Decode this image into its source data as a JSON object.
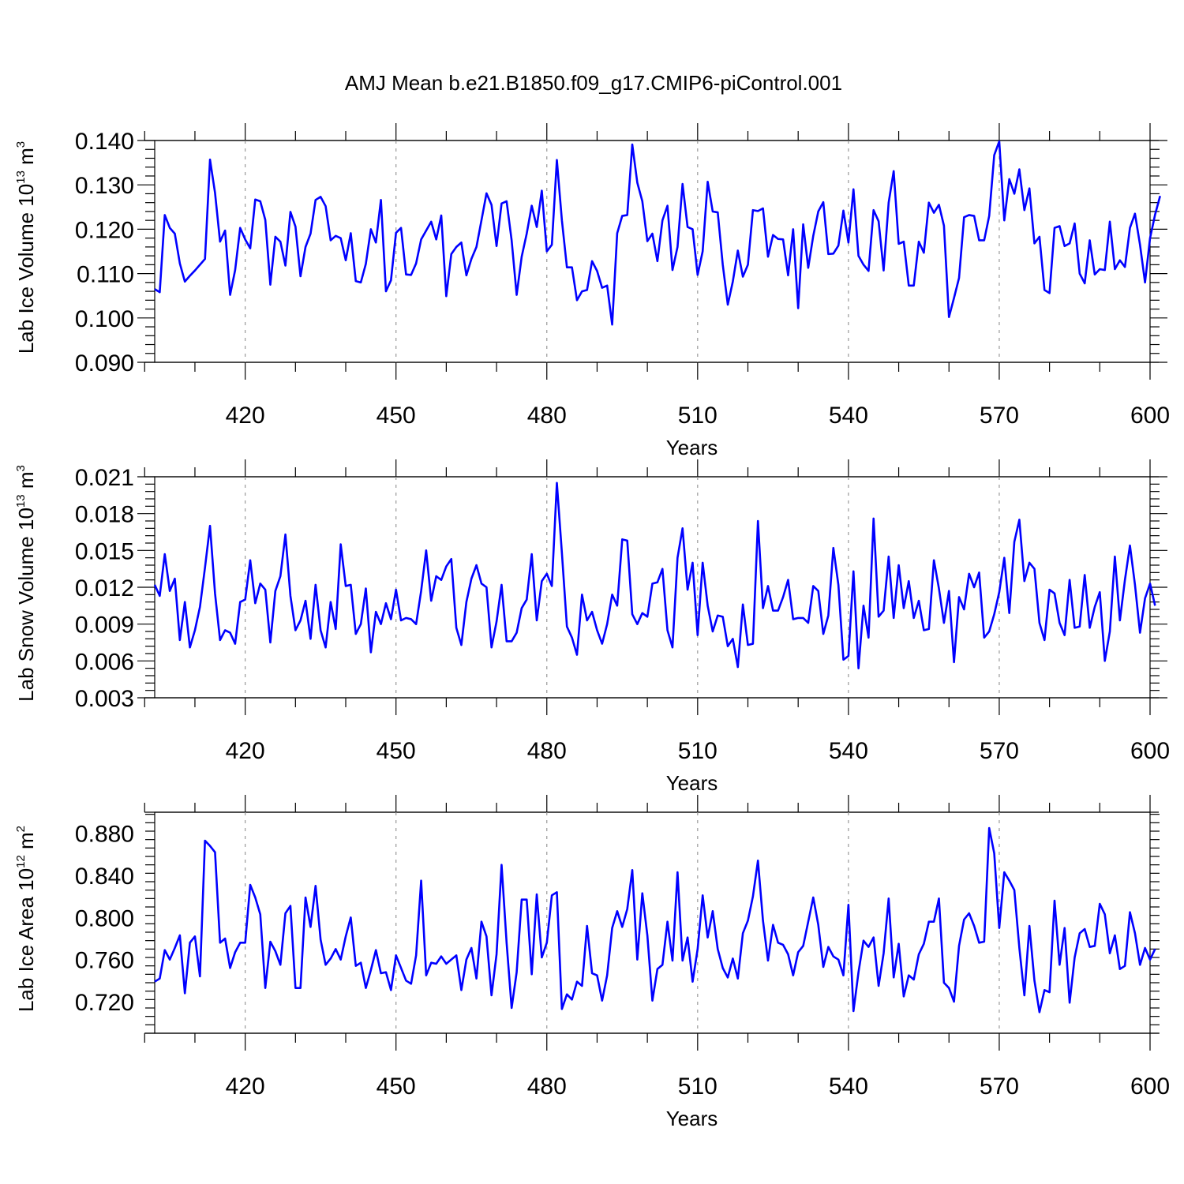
{
  "figure": {
    "title": "AMJ Mean b.e21.B1850.f09_g17.CMIP6-piControl.001",
    "series_color": "#0000ff"
  },
  "chart_data": [
    {
      "type": "line",
      "title": "",
      "ylabel": {
        "text": "Lab Ice Volume 10",
        "sup1": "13",
        "mid": " m",
        "sup2": "3"
      },
      "xlabel": "Years",
      "x_start": 402,
      "x_step": 1,
      "xlim": [
        402,
        600
      ],
      "ylim": [
        0.09,
        0.14
      ],
      "xticks": [
        420,
        450,
        480,
        510,
        540,
        570,
        600
      ],
      "yticks": [
        0.09,
        0.1,
        0.11,
        0.12,
        0.13,
        0.14
      ],
      "ytick_labels": [
        "0.090",
        "0.100",
        "0.110",
        "0.120",
        "0.130",
        "0.140"
      ],
      "grid_x_dashed": [
        420,
        450,
        480,
        510,
        540,
        570
      ],
      "series": [
        {
          "values": [
            0.1065,
            0.1058,
            0.1232,
            0.1203,
            0.119,
            0.1123,
            0.1082,
            0.1095,
            0.1107,
            0.112,
            0.1133,
            0.1357,
            0.1282,
            0.1172,
            0.1197,
            0.1052,
            0.1108,
            0.1203,
            0.1177,
            0.1157,
            0.1267,
            0.1263,
            0.1221,
            0.1075,
            0.1183,
            0.1172,
            0.1118,
            0.1239,
            0.1206,
            0.1094,
            0.116,
            0.119,
            0.1266,
            0.1273,
            0.1252,
            0.1175,
            0.1185,
            0.118,
            0.113,
            0.1191,
            0.1083,
            0.108,
            0.1122,
            0.12,
            0.117,
            0.1266,
            0.106,
            0.1085,
            0.1192,
            0.1203,
            0.1098,
            0.1097,
            0.1123,
            0.1177,
            0.1197,
            0.1217,
            0.1177,
            0.1231,
            0.1049,
            0.1144,
            0.116,
            0.117,
            0.1096,
            0.1133,
            0.116,
            0.122,
            0.1281,
            0.1255,
            0.1162,
            0.1258,
            0.1263,
            0.1175,
            0.1052,
            0.1138,
            0.119,
            0.1253,
            0.1205,
            0.1287,
            0.115,
            0.1165,
            0.1356,
            0.122,
            0.1114,
            0.1114,
            0.104,
            0.106,
            0.1063,
            0.1128,
            0.1106,
            0.1068,
            0.1073,
            0.0985,
            0.1191,
            0.123,
            0.1232,
            0.1391,
            0.1305,
            0.1263,
            0.1173,
            0.119,
            0.1128,
            0.122,
            0.1253,
            0.1108,
            0.116,
            0.1302,
            0.1205,
            0.12,
            0.1097,
            0.115,
            0.1307,
            0.124,
            0.1238,
            0.112,
            0.103,
            0.1082,
            0.1152,
            0.1093,
            0.112,
            0.1243,
            0.1241,
            0.1247,
            0.1138,
            0.1187,
            0.1178,
            0.1177,
            0.1096,
            0.12,
            0.1022,
            0.1211,
            0.1113,
            0.1185,
            0.124,
            0.1261,
            0.1144,
            0.1145,
            0.1163,
            0.1242,
            0.117,
            0.129,
            0.114,
            0.112,
            0.1106,
            0.1243,
            0.1218,
            0.1107,
            0.126,
            0.1331,
            0.1167,
            0.1172,
            0.1073,
            0.1073,
            0.1172,
            0.1147,
            0.126,
            0.1237,
            0.1255,
            0.1208,
            0.1002,
            0.1045,
            0.109,
            0.1227,
            0.1232,
            0.123,
            0.1175,
            0.1175,
            0.123,
            0.1367,
            0.1398,
            0.122,
            0.1313,
            0.128,
            0.1335,
            0.1243,
            0.1292,
            0.1168,
            0.1183,
            0.1063,
            0.1056,
            0.1203,
            0.1207,
            0.1162,
            0.1168,
            0.1213,
            0.11,
            0.1078,
            0.1175,
            0.1098,
            0.111,
            0.1108,
            0.1217,
            0.111,
            0.113,
            0.1115,
            0.1203,
            0.1235,
            0.1165,
            0.108,
            0.118,
            0.1233,
            0.1275
          ]
        }
      ]
    },
    {
      "type": "line",
      "title": "",
      "ylabel": {
        "text": "Lab Snow Volume 10",
        "sup1": "13",
        "mid": " m",
        "sup2": "3"
      },
      "xlabel": "Years",
      "x_start": 402,
      "x_step": 1,
      "xlim": [
        402,
        600
      ],
      "ylim": [
        0.003,
        0.021
      ],
      "xticks": [
        420,
        450,
        480,
        510,
        540,
        570,
        600
      ],
      "yticks": [
        0.003,
        0.006,
        0.009,
        0.012,
        0.015,
        0.018,
        0.021
      ],
      "ytick_labels": [
        "0.003",
        "0.006",
        "0.009",
        "0.012",
        "0.015",
        "0.018",
        "0.021"
      ],
      "grid_x_dashed": [
        420,
        450,
        480,
        510,
        540,
        570
      ],
      "series": [
        {
          "values": [
            0.0122,
            0.0113,
            0.0147,
            0.0117,
            0.0127,
            0.0077,
            0.0108,
            0.0071,
            0.0085,
            0.0104,
            0.0136,
            0.017,
            0.0115,
            0.0077,
            0.0085,
            0.0083,
            0.0074,
            0.0108,
            0.011,
            0.0142,
            0.0107,
            0.0123,
            0.0118,
            0.0075,
            0.0117,
            0.0129,
            0.0163,
            0.0113,
            0.0085,
            0.0093,
            0.0109,
            0.0078,
            0.0122,
            0.0085,
            0.0071,
            0.0108,
            0.0086,
            0.0155,
            0.0121,
            0.0122,
            0.0082,
            0.009,
            0.0119,
            0.0067,
            0.01,
            0.009,
            0.0107,
            0.0094,
            0.0118,
            0.0093,
            0.0095,
            0.0094,
            0.009,
            0.0117,
            0.015,
            0.0109,
            0.0129,
            0.0126,
            0.0137,
            0.0143,
            0.0087,
            0.0073,
            0.0108,
            0.0127,
            0.0138,
            0.0123,
            0.012,
            0.0071,
            0.0092,
            0.0122,
            0.0076,
            0.0076,
            0.0083,
            0.0103,
            0.011,
            0.0147,
            0.0093,
            0.0125,
            0.0131,
            0.0121,
            0.0205,
            0.0148,
            0.0088,
            0.0079,
            0.0065,
            0.0114,
            0.0093,
            0.01,
            0.0085,
            0.0074,
            0.009,
            0.0114,
            0.0105,
            0.0159,
            0.0158,
            0.0098,
            0.009,
            0.0099,
            0.0096,
            0.0123,
            0.0124,
            0.0135,
            0.0085,
            0.0071,
            0.0144,
            0.0168,
            0.0118,
            0.014,
            0.0081,
            0.014,
            0.0105,
            0.0084,
            0.0097,
            0.0096,
            0.0072,
            0.0078,
            0.0055,
            0.0106,
            0.0073,
            0.0074,
            0.0174,
            0.0103,
            0.0121,
            0.0101,
            0.0101,
            0.0112,
            0.0126,
            0.0094,
            0.0095,
            0.0095,
            0.0091,
            0.0121,
            0.0117,
            0.0082,
            0.0097,
            0.0152,
            0.0122,
            0.0061,
            0.0064,
            0.0133,
            0.0054,
            0.0105,
            0.0079,
            0.0176,
            0.0096,
            0.0101,
            0.0145,
            0.0095,
            0.0138,
            0.0103,
            0.0125,
            0.0095,
            0.0109,
            0.0085,
            0.0086,
            0.0142,
            0.0119,
            0.0091,
            0.0117,
            0.0059,
            0.0112,
            0.0102,
            0.0131,
            0.012,
            0.0132,
            0.0079,
            0.0084,
            0.0098,
            0.0116,
            0.0144,
            0.0099,
            0.0157,
            0.0175,
            0.0125,
            0.014,
            0.0135,
            0.0091,
            0.0077,
            0.0118,
            0.0115,
            0.0091,
            0.0081,
            0.0126,
            0.0087,
            0.0088,
            0.013,
            0.0087,
            0.0104,
            0.0116,
            0.006,
            0.0084,
            0.0145,
            0.0093,
            0.0126,
            0.0154,
            0.0122,
            0.0083,
            0.0111,
            0.0123,
            0.0105
          ]
        }
      ]
    },
    {
      "type": "line",
      "title": "",
      "ylabel": {
        "text": "Lab Ice Area 10",
        "sup1": "12",
        "mid": " m",
        "sup2": "2"
      },
      "xlabel": "Years",
      "x_start": 402,
      "x_step": 1,
      "xlim": [
        402,
        600
      ],
      "ylim": [
        0.69,
        0.9
      ],
      "xticks": [
        420,
        450,
        480,
        510,
        540,
        570,
        600
      ],
      "yticks": [
        0.72,
        0.76,
        0.8,
        0.84,
        0.88
      ],
      "ytick_labels": [
        "0.720",
        "0.760",
        "0.800",
        "0.840",
        "0.880"
      ],
      "grid_x_dashed": [
        420,
        450,
        480,
        510,
        540,
        570
      ],
      "series": [
        {
          "values": [
            0.739,
            0.742,
            0.769,
            0.76,
            0.771,
            0.783,
            0.728,
            0.776,
            0.782,
            0.744,
            0.873,
            0.868,
            0.862,
            0.776,
            0.78,
            0.752,
            0.767,
            0.776,
            0.776,
            0.831,
            0.819,
            0.803,
            0.733,
            0.777,
            0.768,
            0.755,
            0.804,
            0.811,
            0.733,
            0.733,
            0.819,
            0.791,
            0.83,
            0.779,
            0.755,
            0.761,
            0.77,
            0.76,
            0.782,
            0.8,
            0.754,
            0.757,
            0.733,
            0.75,
            0.769,
            0.747,
            0.748,
            0.731,
            0.764,
            0.752,
            0.74,
            0.737,
            0.764,
            0.835,
            0.745,
            0.757,
            0.756,
            0.763,
            0.756,
            0.76,
            0.764,
            0.731,
            0.76,
            0.771,
            0.742,
            0.796,
            0.782,
            0.726,
            0.765,
            0.85,
            0.776,
            0.714,
            0.748,
            0.817,
            0.817,
            0.746,
            0.822,
            0.762,
            0.776,
            0.821,
            0.824,
            0.713,
            0.727,
            0.722,
            0.739,
            0.735,
            0.792,
            0.747,
            0.745,
            0.721,
            0.745,
            0.79,
            0.806,
            0.791,
            0.808,
            0.845,
            0.76,
            0.823,
            0.783,
            0.721,
            0.751,
            0.755,
            0.796,
            0.759,
            0.843,
            0.759,
            0.781,
            0.739,
            0.77,
            0.821,
            0.781,
            0.806,
            0.77,
            0.752,
            0.743,
            0.761,
            0.742,
            0.785,
            0.797,
            0.82,
            0.854,
            0.797,
            0.759,
            0.793,
            0.776,
            0.774,
            0.765,
            0.745,
            0.767,
            0.773,
            0.796,
            0.819,
            0.793,
            0.753,
            0.772,
            0.763,
            0.76,
            0.745,
            0.812,
            0.711,
            0.748,
            0.778,
            0.772,
            0.781,
            0.735,
            0.766,
            0.818,
            0.743,
            0.775,
            0.725,
            0.745,
            0.741,
            0.765,
            0.775,
            0.796,
            0.796,
            0.818,
            0.738,
            0.733,
            0.72,
            0.773,
            0.798,
            0.804,
            0.792,
            0.776,
            0.777,
            0.885,
            0.861,
            0.79,
            0.843,
            0.835,
            0.826,
            0.771,
            0.726,
            0.792,
            0.74,
            0.71,
            0.731,
            0.729,
            0.816,
            0.755,
            0.79,
            0.719,
            0.762,
            0.785,
            0.789,
            0.772,
            0.773,
            0.813,
            0.803,
            0.766,
            0.783,
            0.751,
            0.754,
            0.805,
            0.785,
            0.755,
            0.771,
            0.76,
            0.77
          ]
        }
      ]
    }
  ]
}
